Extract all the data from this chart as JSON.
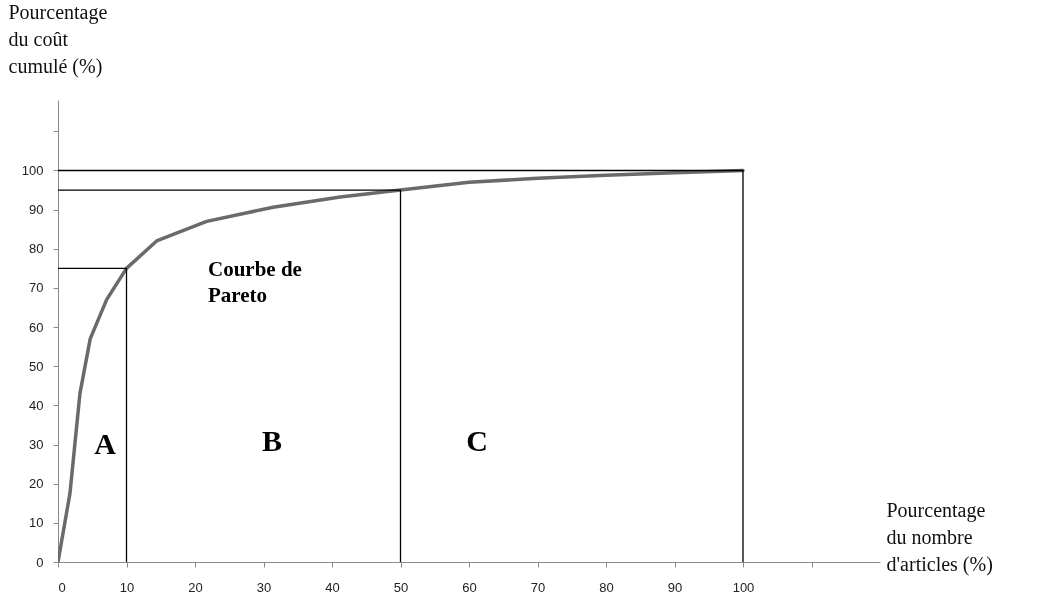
{
  "chart_data": {
    "type": "line",
    "xlabel": "Pourcentage du nombre d'articles (%)",
    "ylabel": "Pourcentage du coût cumulé (%)",
    "xlim": [
      0,
      120
    ],
    "ylim": [
      0,
      118
    ],
    "xticks": [
      0,
      10,
      20,
      30,
      40,
      50,
      60,
      70,
      80,
      90,
      100,
      {
        "value": 110,
        "label": null
      }
    ],
    "yticks": [
      0,
      10,
      20,
      30,
      40,
      50,
      60,
      70,
      80,
      90,
      100,
      {
        "value": 110,
        "label": null
      }
    ],
    "grid": false,
    "marker": "none",
    "line_style": "solid",
    "series": [
      {
        "color": "#6a6a6a",
        "x": [
          0,
          1.75,
          3.2,
          4.7,
          7.1,
          10,
          14.4,
          21.7,
          31.4,
          41.2,
          50,
          60,
          70,
          80,
          90,
          100
        ],
        "values": [
          0,
          17.6,
          43,
          57,
          67,
          75,
          82,
          87,
          90.6,
          93.2,
          95,
          97,
          98,
          98.8,
          99.4,
          100
        ]
      },
      {
        "color": "#000000",
        "x": [
          0,
          10,
          10
        ],
        "values": [
          75,
          75,
          0
        ]
      },
      {
        "color": "#000000",
        "x": [
          0,
          50,
          50
        ],
        "values": [
          95,
          95,
          0
        ]
      },
      {
        "color": "#000000",
        "x": [
          0,
          100,
          100
        ],
        "values": [
          100,
          100,
          0
        ]
      }
    ],
    "annotations": [
      "Courbe de Pareto",
      "A",
      "B",
      "C"
    ]
  }
}
